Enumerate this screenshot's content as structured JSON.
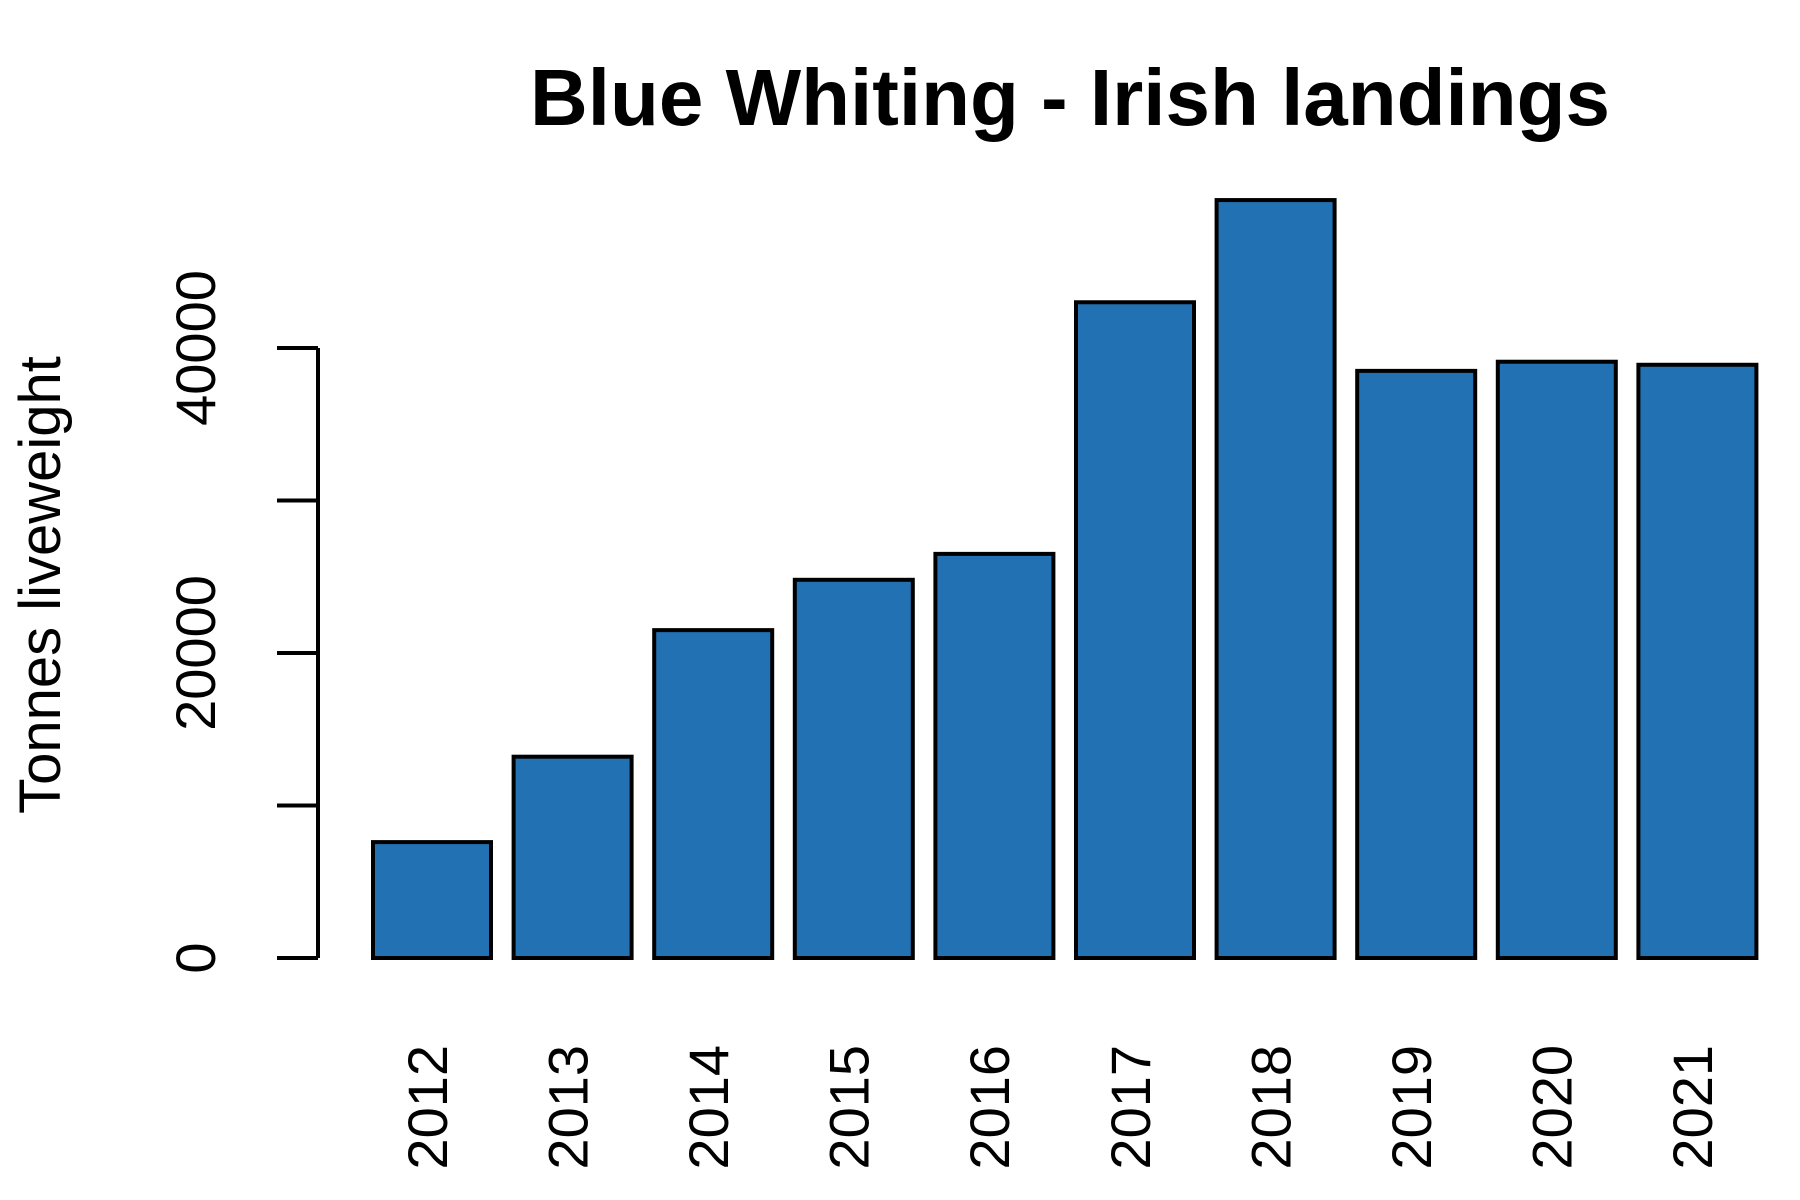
{
  "chart_data": {
    "type": "bar",
    "title": "Blue Whiting - Irish landings",
    "xlabel": "",
    "ylabel": "Tonnes liveweight",
    "categories": [
      "2012",
      "2013",
      "2014",
      "2015",
      "2016",
      "2017",
      "2018",
      "2019",
      "2020",
      "2021"
    ],
    "values": [
      7600,
      13200,
      21500,
      24800,
      26500,
      43000,
      49700,
      38500,
      39100,
      38900
    ],
    "ylim": [
      0,
      50000
    ],
    "yticks": [
      0,
      10000,
      20000,
      30000,
      40000
    ],
    "ytick_labels": [
      "0",
      "",
      "20000",
      "",
      "40000"
    ],
    "grid": false,
    "legend": "none",
    "colors": {
      "bar": "#2271b3",
      "edge": "#000000"
    }
  }
}
